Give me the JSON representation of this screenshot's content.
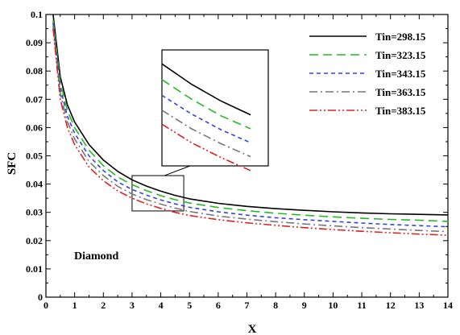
{
  "chart_data": {
    "type": "line",
    "title": "",
    "xlabel": "X",
    "ylabel": "SFC",
    "xlim": [
      0,
      14
    ],
    "ylim": [
      0,
      0.1
    ],
    "xticks": [
      0,
      1,
      2,
      3,
      4,
      5,
      6,
      7,
      8,
      9,
      10,
      11,
      12,
      13,
      14
    ],
    "yticks": [
      0,
      0.01,
      0.02,
      0.03,
      0.04,
      0.05,
      0.06,
      0.07,
      0.08,
      0.09,
      0.1
    ],
    "xtick_labels": [
      "0",
      "1",
      "2",
      "3",
      "4",
      "5",
      "6",
      "7",
      "8",
      "9",
      "10",
      "11",
      "12",
      "13",
      "14"
    ],
    "ytick_labels": [
      "0",
      "0.01",
      "0.02",
      "0.03",
      "0.04",
      "0.05",
      "0.06",
      "0.07",
      "0.08",
      "0.09",
      "0.1"
    ],
    "grid": false,
    "legend_position": "top-right",
    "annotation": "Diamond",
    "x": [
      0.25,
      0.5,
      0.75,
      1,
      1.5,
      2,
      2.5,
      3,
      3.5,
      4,
      4.5,
      5,
      6,
      7,
      8,
      9,
      10,
      11,
      12,
      13,
      14
    ],
    "series": [
      {
        "name": "Tin=298.15",
        "color": "#000000",
        "dash": "solid",
        "values": [
          0.1,
          0.078,
          0.068,
          0.062,
          0.054,
          0.0485,
          0.0445,
          0.0415,
          0.0393,
          0.0375,
          0.036,
          0.0348,
          0.0332,
          0.0321,
          0.0313,
          0.0307,
          0.0302,
          0.0298,
          0.0295,
          0.0293,
          0.0291
        ]
      },
      {
        "name": "Tin=323.15",
        "color": "#22bb22",
        "dash": "dash",
        "values": [
          0.098,
          0.076,
          0.066,
          0.06,
          0.052,
          0.0465,
          0.0425,
          0.0398,
          0.0377,
          0.0359,
          0.0345,
          0.0333,
          0.0317,
          0.0306,
          0.0297,
          0.029,
          0.0284,
          0.0279,
          0.0275,
          0.0272,
          0.0268
        ]
      },
      {
        "name": "Tin=343.15",
        "color": "#3344dd",
        "dash": "short-dash",
        "values": [
          0.097,
          0.074,
          0.064,
          0.058,
          0.05,
          0.0448,
          0.0408,
          0.0381,
          0.0361,
          0.0344,
          0.033,
          0.0318,
          0.0302,
          0.029,
          0.0281,
          0.0274,
          0.0268,
          0.0262,
          0.0257,
          0.0253,
          0.0249
        ]
      },
      {
        "name": "Tin=363.15",
        "color": "#777777",
        "dash": "dash-dot",
        "values": [
          0.096,
          0.072,
          0.062,
          0.056,
          0.048,
          0.043,
          0.0392,
          0.0365,
          0.0345,
          0.0329,
          0.0315,
          0.0303,
          0.0287,
          0.0276,
          0.0267,
          0.0259,
          0.0252,
          0.0246,
          0.0241,
          0.0236,
          0.0232
        ]
      },
      {
        "name": "Tin=383.15",
        "color": "#dd2222",
        "dash": "dash-dot-dot",
        "values": [
          0.095,
          0.07,
          0.06,
          0.054,
          0.046,
          0.0412,
          0.0376,
          0.035,
          0.033,
          0.0314,
          0.03,
          0.0289,
          0.0274,
          0.0263,
          0.0254,
          0.0246,
          0.0239,
          0.0233,
          0.0228,
          0.0223,
          0.0219
        ]
      }
    ],
    "inset": {
      "zoom_xlim": [
        3,
        4.8
      ],
      "zoom_ylim": [
        0.0305,
        0.043
      ]
    }
  }
}
